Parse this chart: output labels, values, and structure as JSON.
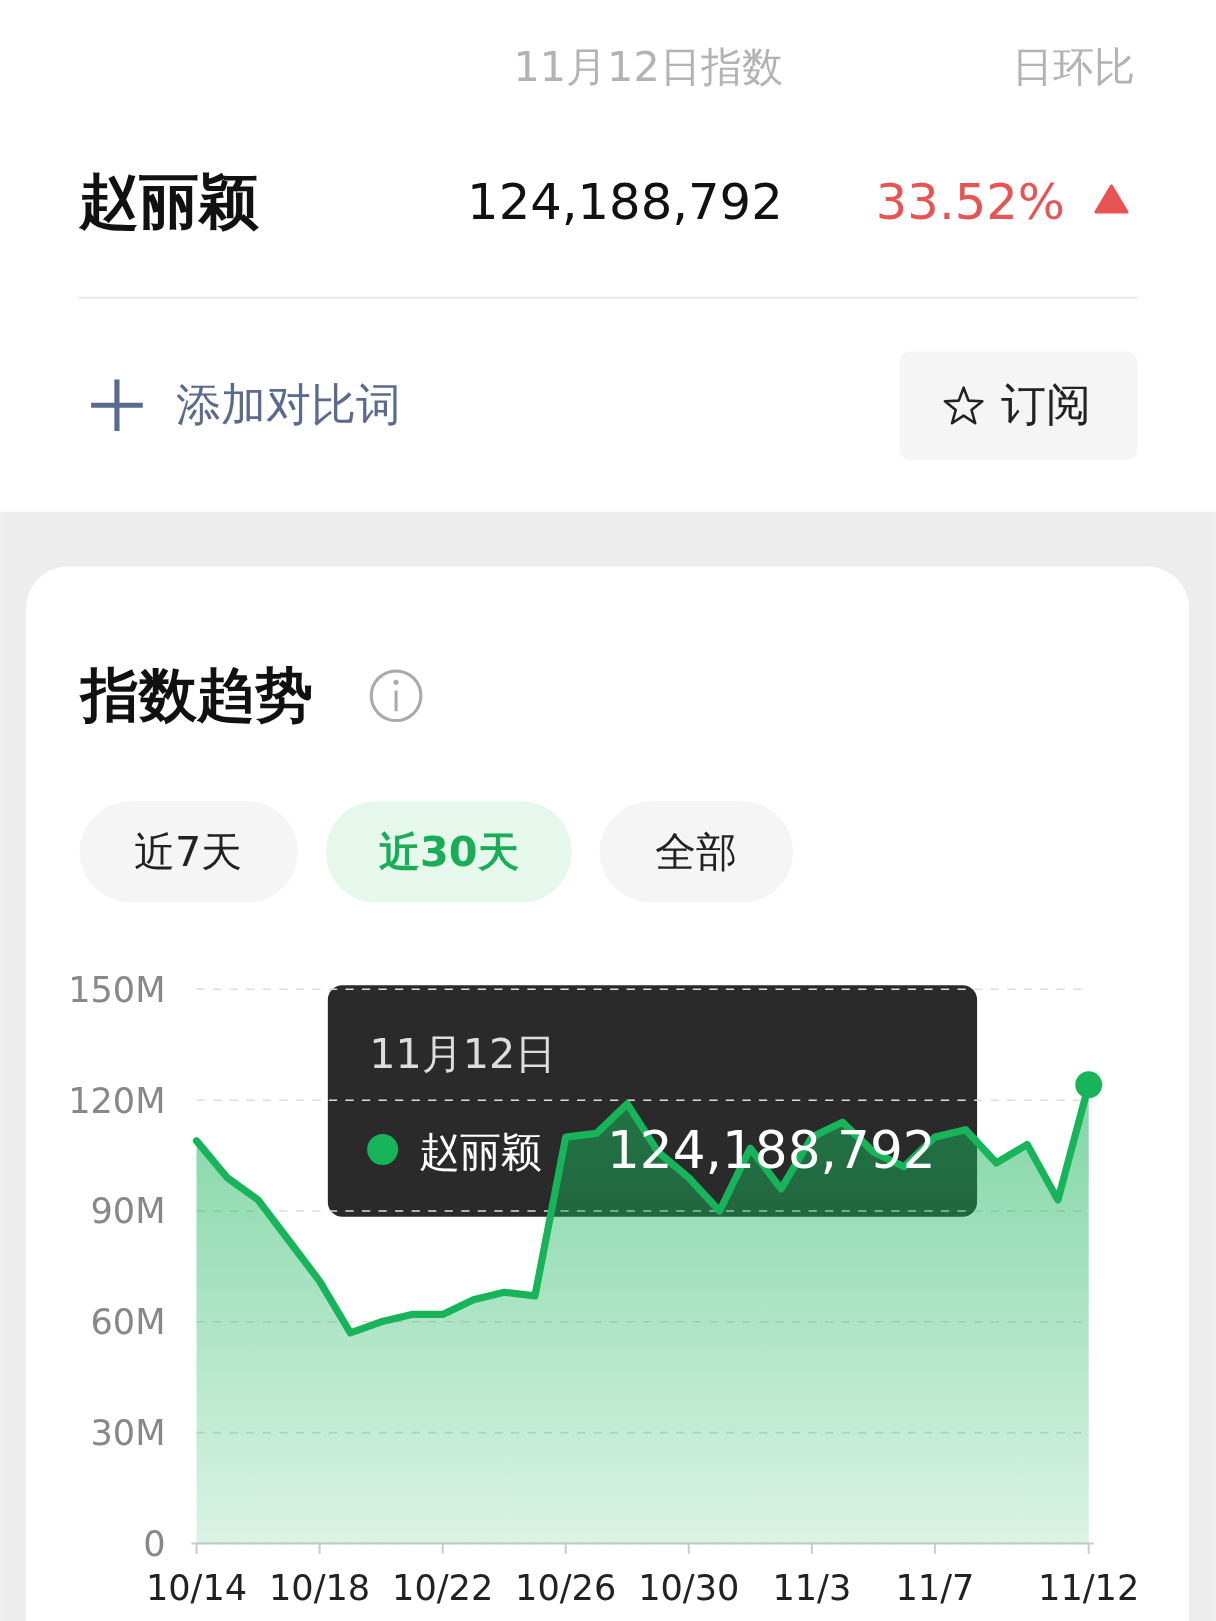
{
  "chart_data": {
    "type": "area",
    "title": "指数趋势",
    "categories": [
      "10/14",
      null,
      null,
      null,
      "10/18",
      null,
      null,
      null,
      "10/22",
      null,
      null,
      null,
      "10/26",
      null,
      null,
      null,
      "10/30",
      null,
      null,
      null,
      "11/3",
      null,
      null,
      null,
      "11/7",
      null,
      null,
      null,
      null,
      "11/12"
    ],
    "series": [
      {
        "name": "赵丽颖",
        "color": "#18b45a",
        "values": [
          109,
          99,
          93,
          82,
          71,
          57,
          60,
          62,
          62,
          66,
          68,
          67,
          110,
          111,
          119,
          106,
          99,
          90,
          107,
          96,
          110,
          114,
          106,
          102,
          110,
          112,
          103,
          108,
          93,
          124.188792
        ]
      }
    ],
    "ylim": [
      0,
      150
    ],
    "yticks": [
      0,
      {
        "value": 30,
        "label": "30M"
      },
      {
        "value": 60,
        "label": "60M"
      },
      {
        "value": 90,
        "label": "90M"
      },
      {
        "value": 120,
        "label": "120M"
      },
      {
        "value": 150,
        "label": "150M"
      }
    ],
    "grid": "y",
    "line_style": "solid",
    "annotations": [
      "11月12日指数",
      "日环比",
      "赵丽颖",
      "124,188,792",
      "33.52%",
      "添加对比词",
      "订阅",
      "近7天",
      "近30天",
      "全部",
      "11月12日",
      "124,188,792"
    ]
  }
}
